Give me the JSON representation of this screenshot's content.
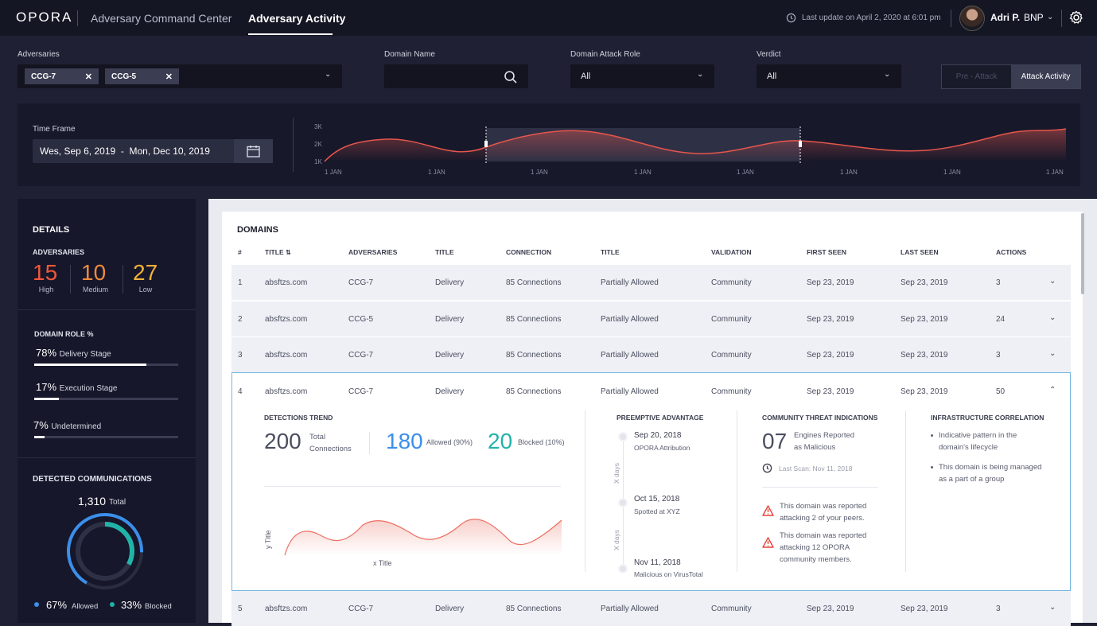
{
  "app": {
    "logo": "OPORA",
    "nav_tabs": [
      "Adversary Command Center",
      "Adversary Activity"
    ],
    "last_update": "Last update on April 2, 2020 at 6:01 pm",
    "user_name": "Adri P.",
    "user_org": "BNP"
  },
  "filters": {
    "adversaries_label": "Adversaries",
    "adversary_chips": [
      "CCG-7",
      "CCG-5"
    ],
    "domain_name_label": "Domain Name",
    "domain_name_value": "",
    "domain_role_label": "Domain Attack Role",
    "domain_role_value": "All",
    "verdict_label": "Verdict",
    "verdict_value": "All",
    "toggle_options": [
      "Pre - Attack",
      "Attack Activity"
    ]
  },
  "timeframe": {
    "label": "Time Frame",
    "range": "Wes, Sep 6, 2019  -  Mon, Dec 10, 2019",
    "y_ticks": [
      "3K",
      "2K",
      "1K"
    ],
    "x_ticks": [
      "1 JAN",
      "1 JAN",
      "1 JAN",
      "1 JAN",
      "1 JAN",
      "1 JAN",
      "1 JAN",
      "1 JAN"
    ]
  },
  "details": {
    "title": "DETAILS",
    "adversaries_title": "ADVERSARIES",
    "counts": [
      {
        "value": "15",
        "label": "High",
        "color": "#f0573b"
      },
      {
        "value": "10",
        "label": "Medium",
        "color": "#f08a3b"
      },
      {
        "value": "27",
        "label": "Low",
        "color": "#f2b23a"
      }
    ],
    "domain_role_title": "DOMAIN ROLE %",
    "roles": [
      {
        "pct": "78%",
        "label": "Delivery Stage",
        "value": 78
      },
      {
        "pct": "17%",
        "label": "Execution Stage",
        "value": 17
      },
      {
        "pct": "7%",
        "label": "Undetermined",
        "value": 7
      }
    ],
    "comms_title": "DETECTED COMMUNICATIONS",
    "comms_total": "1,310",
    "comms_total_label": "Total",
    "allowed_pct": "67%",
    "allowed_label": "Allowed",
    "blocked_pct": "33%",
    "blocked_label": "Blocked",
    "allowed_value": 67,
    "blocked_value": 33,
    "allowed_color": "#3b8fea",
    "blocked_color": "#22b3a8"
  },
  "domains": {
    "title": "DOMAINS",
    "columns": [
      "#",
      "TITLE",
      "ADVERSARIES",
      "TITLE",
      "CONNECTION",
      "TITLE",
      "VALIDATION",
      "FIRST SEEN",
      "LAST SEEN",
      "ACTIONS"
    ],
    "rows": [
      [
        "1",
        "absftzs.com",
        "CCG-7",
        "Delivery",
        "85 Connections",
        "Partially Allowed",
        "Community",
        "Sep 23, 2019",
        "Sep 23, 2019",
        "3"
      ],
      [
        "2",
        "absftzs.com",
        "CCG-5",
        "Delivery",
        "85 Connections",
        "Partially Allowed",
        "Community",
        "Sep 23, 2019",
        "Sep 23, 2019",
        "24"
      ],
      [
        "3",
        "absftzs.com",
        "CCG-7",
        "Delivery",
        "85 Connections",
        "Partially Allowed",
        "Community",
        "Sep 23, 2019",
        "Sep 23, 2019",
        "3"
      ],
      [
        "4",
        "absftzs.com",
        "CCG-7",
        "Delivery",
        "85 Connections",
        "Partially Allowed",
        "Community",
        "Sep 23, 2019",
        "Sep 23, 2019",
        "50"
      ],
      [
        "5",
        "absftzs.com",
        "CCG-7",
        "Delivery",
        "85 Connections",
        "Partially Allowed",
        "Community",
        "Sep 23, 2019",
        "Sep 23, 2019",
        "3"
      ]
    ],
    "expanded": {
      "trend_title": "DETECTIONS TREND",
      "total": "200",
      "total_label_1": "Total",
      "total_label_2": "Connections",
      "allowed": "180",
      "allowed_label": "Allowed (90%)",
      "blocked": "20",
      "blocked_label": "Blocked (10%)",
      "y_title": "y Title",
      "x_title": "x Title",
      "preemptive_title": "PREEMPTIVE ADVANTAGE",
      "timeline": [
        {
          "date": "Sep 20, 2018",
          "desc": "OPORA Attribution"
        },
        {
          "date": "Oct 15, 2018",
          "desc": "Spotted at XYZ"
        },
        {
          "date": "Nov 11, 2018",
          "desc": "Malicious on VirusTotal"
        }
      ],
      "x_days": "X days",
      "community_title": "COMMUNITY THREAT INDICATIONS",
      "engines_count": "07",
      "engines_label_1": "Engines Reported",
      "engines_label_2": "as Malicious",
      "last_scan": "Last Scan: Nov 11, 2018",
      "warnings": [
        [
          "This domain was reported",
          "attacking 2 of your peers."
        ],
        [
          "This domain was reported",
          "attacking 12 OPORA",
          "community members."
        ]
      ],
      "infra_title": "INFRASTRUCTURE CORRELATION",
      "infra_items": [
        [
          "Indicative pattern in the",
          "domain's lifecycle"
        ],
        [
          "This domain is being managed",
          "as a part of a group"
        ]
      ]
    }
  }
}
